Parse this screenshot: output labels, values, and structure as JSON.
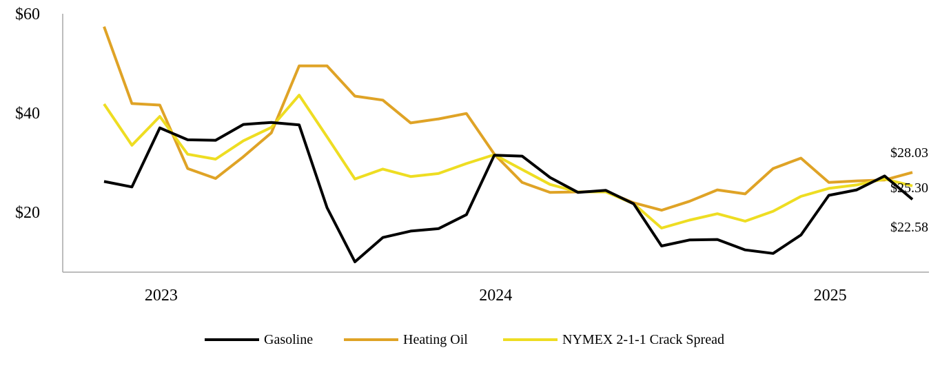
{
  "chart_data": {
    "type": "line",
    "title": "",
    "xlabel": "",
    "ylabel": "",
    "ylim": [
      10,
      60
    ],
    "yticks": [
      {
        "value": 20,
        "label": "$20"
      },
      {
        "value": 40,
        "label": "$40"
      },
      {
        "value": 60,
        "label": "$60"
      }
    ],
    "xticks": [
      {
        "index": 2,
        "label": "2023"
      },
      {
        "index": 14,
        "label": "2024"
      },
      {
        "index": 26,
        "label": "2025"
      }
    ],
    "grid": false,
    "legend_position": "bottom",
    "series": [
      {
        "name": "Gasoline",
        "color": "#000000",
        "values": [
          26.2,
          25.1,
          37.0,
          34.6,
          34.5,
          37.7,
          38.1,
          37.6,
          20.9,
          10.0,
          14.9,
          16.2,
          16.7,
          19.5,
          31.5,
          31.3,
          27.0,
          24.0,
          24.4,
          21.7,
          13.2,
          14.4,
          14.5,
          12.4,
          11.7,
          15.4,
          23.4,
          24.5,
          27.3,
          22.58
        ],
        "end_label": "$22.58"
      },
      {
        "name": "Heating Oil",
        "color": "#DFA326",
        "values": [
          57.4,
          41.9,
          41.6,
          28.8,
          26.8,
          31.2,
          36.0,
          49.5,
          49.5,
          43.4,
          42.6,
          38.0,
          38.8,
          39.9,
          31.7,
          26.0,
          24.0,
          24.1,
          24.2,
          21.9,
          20.4,
          22.2,
          24.5,
          23.7,
          28.8,
          30.9,
          26.0,
          26.3,
          26.5,
          28.03
        ],
        "end_label": "$28.03"
      },
      {
        "name": "NYMEX 2-1-1 Crack Spread",
        "color": "#EEDD22",
        "values": [
          41.8,
          33.5,
          39.3,
          31.7,
          30.7,
          34.4,
          37.1,
          43.6,
          35.2,
          26.7,
          28.7,
          27.2,
          27.8,
          29.8,
          31.6,
          28.6,
          25.6,
          24.1,
          24.1,
          21.7,
          16.8,
          18.4,
          19.7,
          18.2,
          20.2,
          23.2,
          24.8,
          25.5,
          26.7,
          25.3
        ],
        "end_label": "$25.30"
      }
    ]
  }
}
